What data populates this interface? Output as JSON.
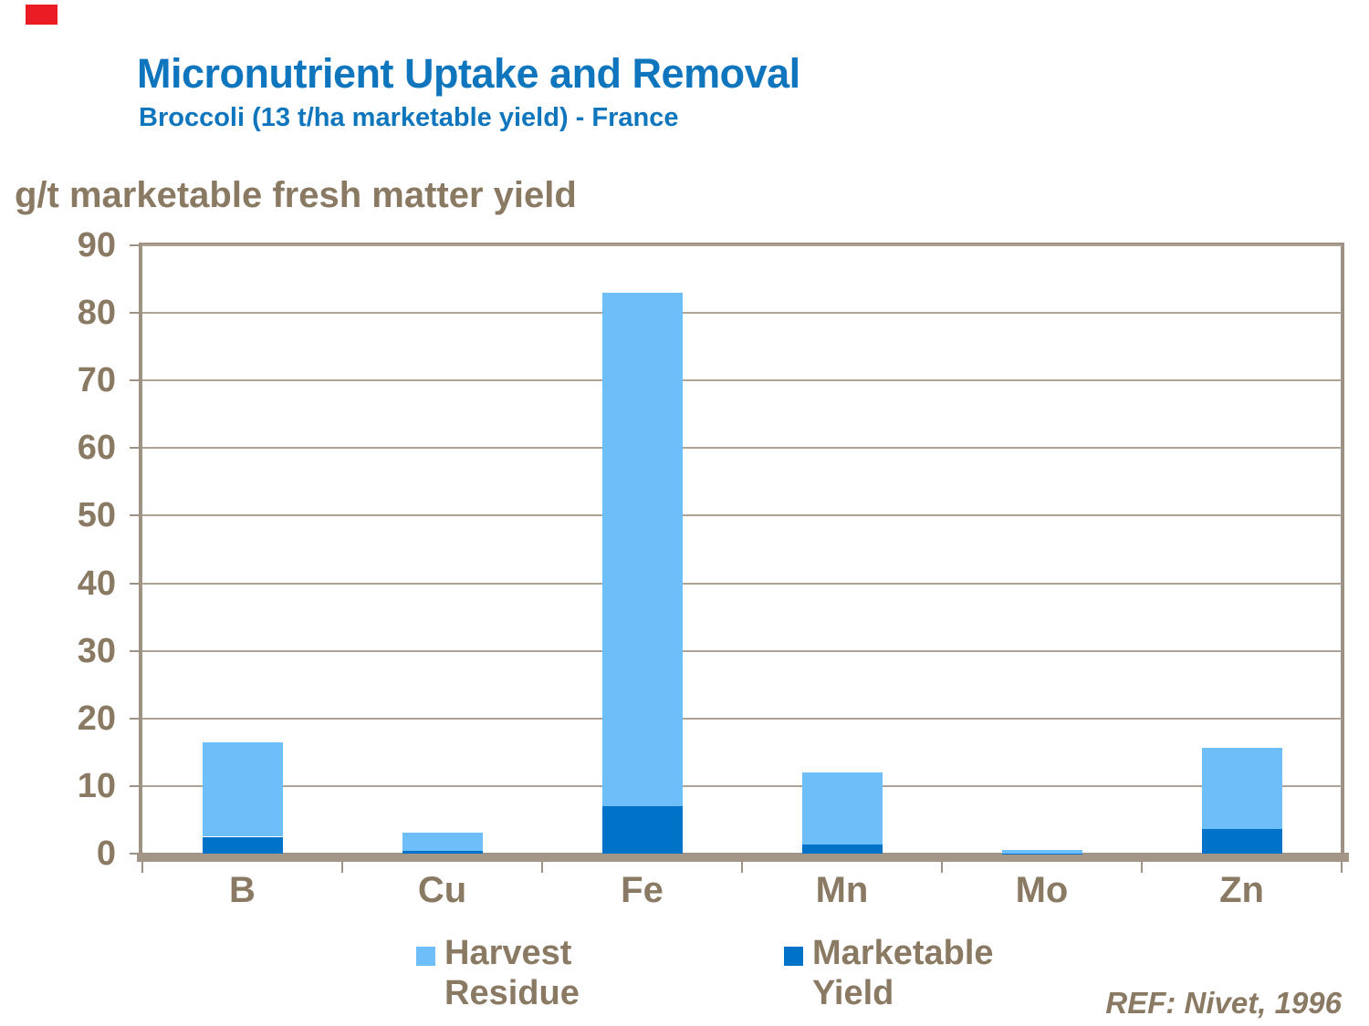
{
  "slide": {
    "title": "Micronutrient Uptake and Removal",
    "subtitle": "Broccoli (13 t/ha marketable yield) - France",
    "axis_title": "g/t marketable fresh matter yield",
    "reference": "REF: Nivet, 1996"
  },
  "colors": {
    "title_blue": "#0F76BE",
    "text_brown": "#8A7A63",
    "axis_line": "#9E9285",
    "axis_band": "#A39687",
    "gridline": "#AFA396",
    "corner_mark_red": "#EC1C24",
    "harvest_residue_blue": "#6EBEFA",
    "marketable_yield_blue": "#0073C8"
  },
  "chart_data": {
    "type": "bar",
    "stacked": true,
    "title": "Micronutrient Uptake and Removal",
    "subtitle": "Broccoli (13 t/ha marketable yield) - France",
    "ylabel": "g/t marketable fresh matter yield",
    "xlabel": "",
    "ylim": [
      0,
      90
    ],
    "ytick_step": 10,
    "yticks": [
      0,
      10,
      20,
      30,
      40,
      50,
      60,
      70,
      80,
      90
    ],
    "grid": true,
    "categories": [
      "B",
      "Cu",
      "Fe",
      "Mn",
      "Mo",
      "Zn"
    ],
    "series": [
      {
        "name": "Marketable Yield",
        "color": "#0073C8",
        "values": [
          2.5,
          0.4,
          7.0,
          1.3,
          0.05,
          3.7
        ]
      },
      {
        "name": "Harvest Residue",
        "color": "#6EBEFA",
        "values": [
          14.0,
          2.7,
          76.0,
          10.7,
          0.55,
          11.9
        ]
      }
    ],
    "totals": [
      16.5,
      3.1,
      83.0,
      12.0,
      0.6,
      15.6
    ],
    "legend_position": "bottom",
    "legend_items": [
      {
        "label": "Harvest Residue",
        "color": "#6EBEFA"
      },
      {
        "label": "Marketable Yield",
        "color": "#0073C8"
      }
    ]
  }
}
